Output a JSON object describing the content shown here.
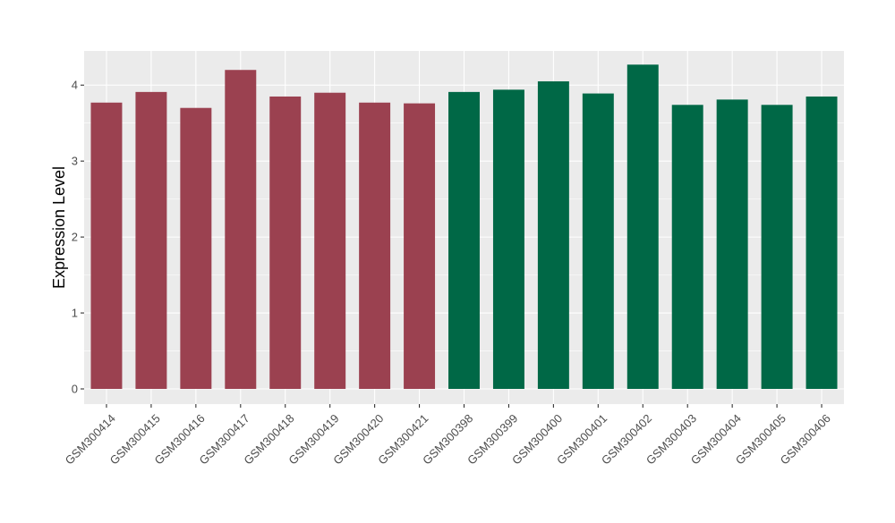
{
  "chart_data": {
    "type": "bar",
    "title": "",
    "xlabel": "",
    "ylabel": "Expression Level",
    "ylim": [
      -0.2,
      4.45
    ],
    "yticks": [
      0,
      1,
      2,
      3,
      4
    ],
    "grid": true,
    "categories": [
      "GSM300414",
      "GSM300415",
      "GSM300416",
      "GSM300417",
      "GSM300418",
      "GSM300419",
      "GSM300420",
      "GSM300421",
      "GSM300398",
      "GSM300399",
      "GSM300400",
      "GSM300401",
      "GSM300402",
      "GSM300403",
      "GSM300404",
      "GSM300405",
      "GSM300406"
    ],
    "values": [
      3.77,
      3.91,
      3.7,
      4.2,
      3.85,
      3.9,
      3.77,
      3.76,
      3.91,
      3.94,
      4.05,
      3.89,
      4.27,
      3.74,
      3.81,
      3.74,
      3.85
    ],
    "bar_colors": [
      "#9b4150",
      "#9b4150",
      "#9b4150",
      "#9b4150",
      "#9b4150",
      "#9b4150",
      "#9b4150",
      "#9b4150",
      "#006846",
      "#006846",
      "#006846",
      "#006846",
      "#006846",
      "#006846",
      "#006846",
      "#006846",
      "#006846"
    ],
    "panel_background": "#ebebeb",
    "grid_color": "#ffffff"
  }
}
